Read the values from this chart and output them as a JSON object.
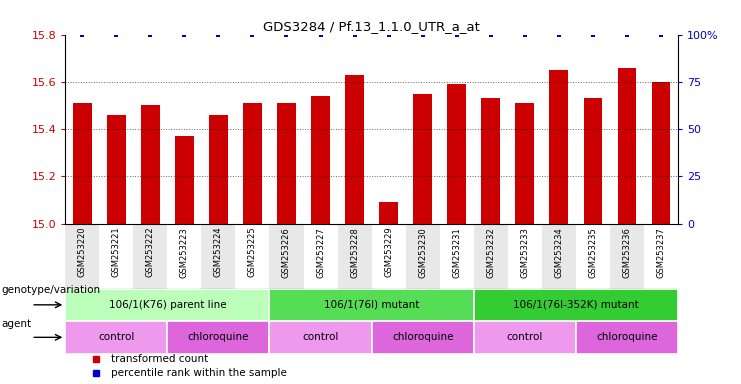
{
  "title": "GDS3284 / Pf.13_1.1.0_UTR_a_at",
  "samples": [
    "GSM253220",
    "GSM253221",
    "GSM253222",
    "GSM253223",
    "GSM253224",
    "GSM253225",
    "GSM253226",
    "GSM253227",
    "GSM253228",
    "GSM253229",
    "GSM253230",
    "GSM253231",
    "GSM253232",
    "GSM253233",
    "GSM253234",
    "GSM253235",
    "GSM253236",
    "GSM253237"
  ],
  "bar_values": [
    15.51,
    15.46,
    15.5,
    15.37,
    15.46,
    15.51,
    15.51,
    15.54,
    15.63,
    15.09,
    15.55,
    15.59,
    15.53,
    15.51,
    15.65,
    15.53,
    15.66,
    15.6
  ],
  "percentile_values": [
    100,
    100,
    100,
    100,
    100,
    100,
    100,
    100,
    100,
    100,
    100,
    100,
    100,
    100,
    100,
    100,
    100,
    100
  ],
  "bar_color": "#cc0000",
  "percentile_color": "#0000cc",
  "ylim_left": [
    15.0,
    15.8
  ],
  "ylim_right": [
    0,
    100
  ],
  "yticks_left": [
    15.0,
    15.2,
    15.4,
    15.6,
    15.8
  ],
  "yticks_right": [
    0,
    25,
    50,
    75,
    100
  ],
  "ytick_labels_right": [
    "0",
    "25",
    "50",
    "75",
    "100%"
  ],
  "bar_width": 0.55,
  "col_colors": [
    "#e8e8e8",
    "#ffffff"
  ],
  "genotype_groups": [
    {
      "label": "106/1(K76) parent line",
      "start": 0,
      "end": 5,
      "color": "#bbffbb"
    },
    {
      "label": "106/1(76I) mutant",
      "start": 6,
      "end": 11,
      "color": "#55dd55"
    },
    {
      "label": "106/1(76I-352K) mutant",
      "start": 12,
      "end": 17,
      "color": "#33cc33"
    }
  ],
  "agent_groups": [
    {
      "label": "control",
      "start": 0,
      "end": 2,
      "color": "#ee99ee"
    },
    {
      "label": "chloroquine",
      "start": 3,
      "end": 5,
      "color": "#dd66dd"
    },
    {
      "label": "control",
      "start": 6,
      "end": 8,
      "color": "#ee99ee"
    },
    {
      "label": "chloroquine",
      "start": 9,
      "end": 11,
      "color": "#dd66dd"
    },
    {
      "label": "control",
      "start": 12,
      "end": 14,
      "color": "#ee99ee"
    },
    {
      "label": "chloroquine",
      "start": 15,
      "end": 17,
      "color": "#dd66dd"
    }
  ],
  "legend_items": [
    {
      "label": "transformed count",
      "color": "#cc0000"
    },
    {
      "label": "percentile rank within the sample",
      "color": "#0000cc"
    }
  ],
  "genotype_label": "genotype/variation",
  "agent_label": "agent",
  "background_color": "#ffffff"
}
